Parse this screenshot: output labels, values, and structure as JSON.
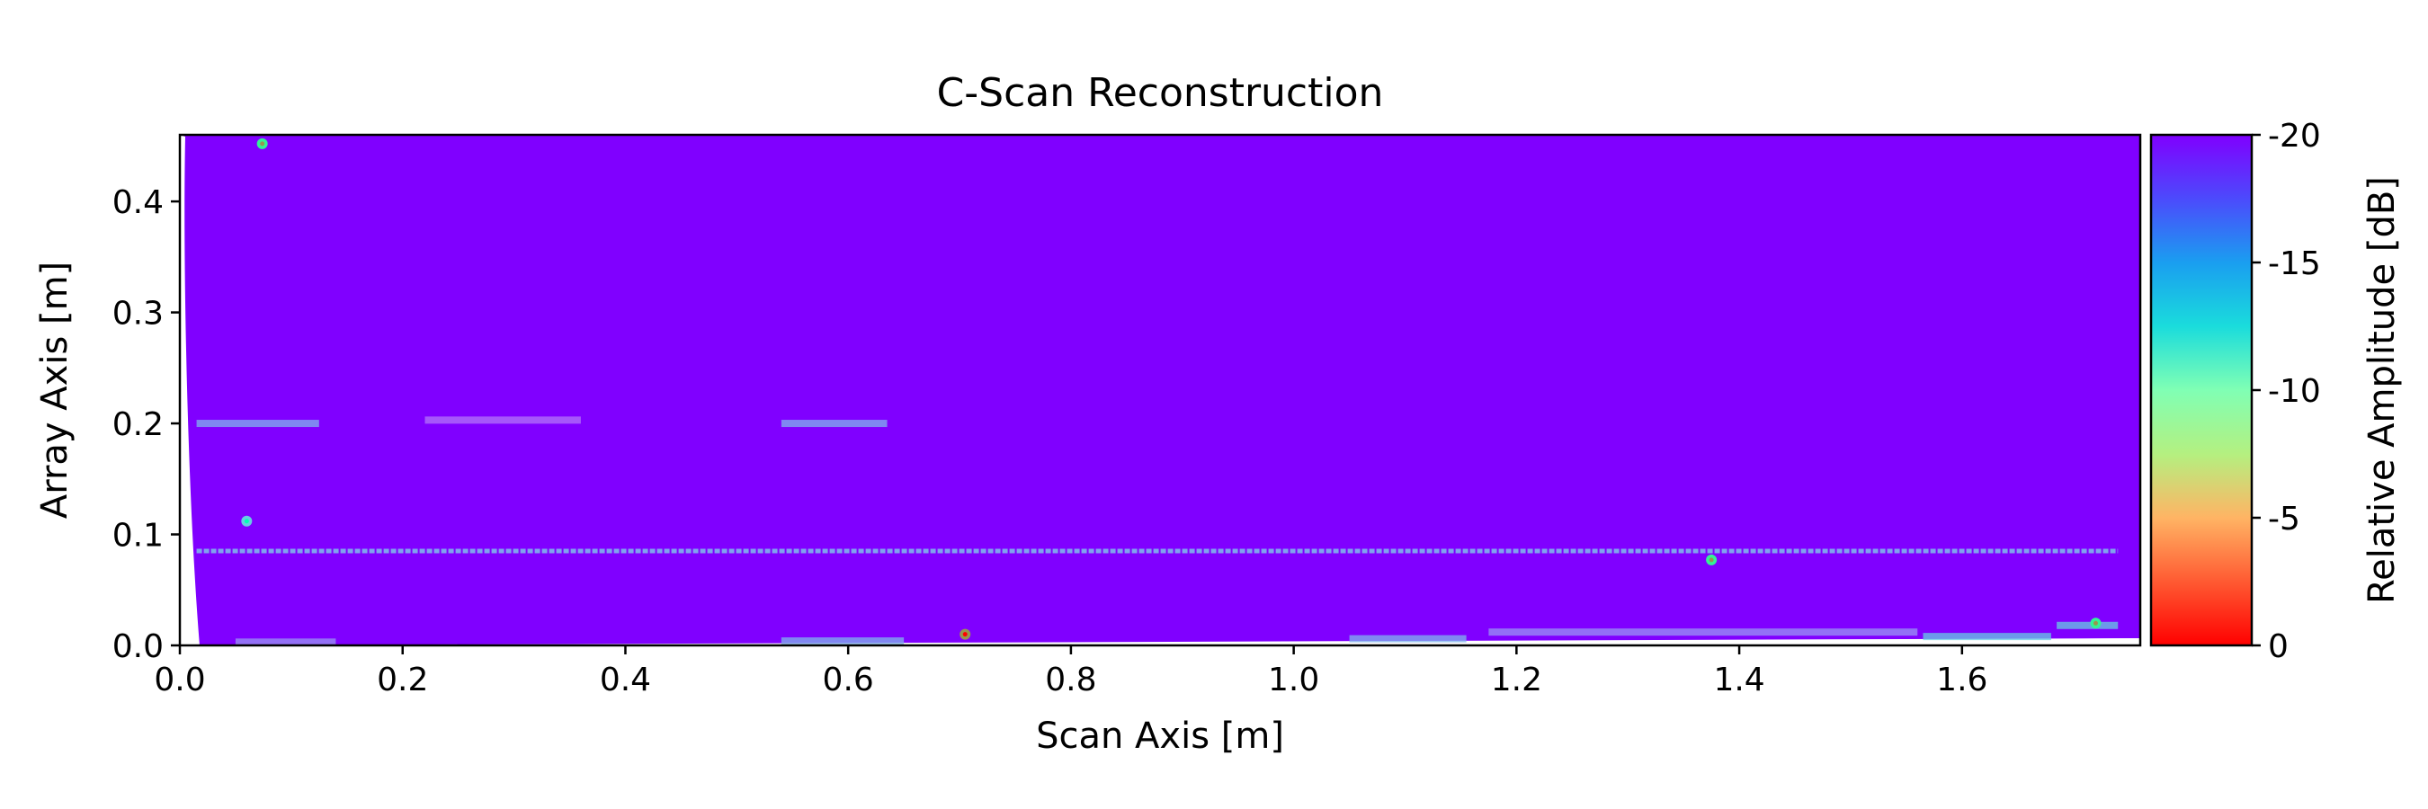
{
  "chart_data": {
    "type": "heatmap",
    "title": "C-Scan Reconstruction",
    "xlabel": "Scan Axis [m]",
    "ylabel": "Array Axis [m]",
    "xlim": [
      0.0,
      1.76
    ],
    "ylim": [
      0.0,
      0.46
    ],
    "xticks": [
      0.0,
      0.2,
      0.4,
      0.6,
      0.8,
      1.0,
      1.2,
      1.4,
      1.6
    ],
    "xtick_labels": [
      "0.0",
      "0.2",
      "0.4",
      "0.6",
      "0.8",
      "1.0",
      "1.2",
      "1.4",
      "1.6"
    ],
    "yticks": [
      0.0,
      0.1,
      0.2,
      0.3,
      0.4
    ],
    "ytick_labels": [
      "0.0",
      "0.1",
      "0.2",
      "0.3",
      "0.4"
    ],
    "colorbar": {
      "label": "Relative Amplitude [dB]",
      "range": [
        -20,
        0
      ],
      "ticks": [
        0,
        -5,
        -10,
        -15,
        -20
      ],
      "tick_labels": [
        "0",
        "-5",
        "-10",
        "-15",
        "-20"
      ],
      "colormap": "rainbow",
      "orientation": "top is -20, bottom is 0"
    },
    "background_level_db": -20,
    "background_color": "#8000ff",
    "grid": false,
    "features": [
      {
        "kind": "line",
        "x": [
          0.015,
          1.74
        ],
        "y": 0.085,
        "db": -15
      },
      {
        "kind": "band",
        "x": [
          0.015,
          0.125
        ],
        "y": 0.2,
        "db": -15
      },
      {
        "kind": "band",
        "x": [
          0.54,
          0.635
        ],
        "y": 0.2,
        "db": -15
      },
      {
        "kind": "band",
        "x": [
          0.22,
          0.36
        ],
        "y": 0.203,
        "db": -17
      },
      {
        "kind": "band",
        "x": [
          0.54,
          0.65
        ],
        "y": 0.004,
        "db": -15
      },
      {
        "kind": "band",
        "x": [
          1.05,
          1.155
        ],
        "y": 0.006,
        "db": -15
      },
      {
        "kind": "band",
        "x": [
          1.175,
          1.56
        ],
        "y": 0.012,
        "db": -16
      },
      {
        "kind": "band",
        "x": [
          1.565,
          1.68
        ],
        "y": 0.008,
        "db": -14
      },
      {
        "kind": "band",
        "x": [
          1.685,
          1.74
        ],
        "y": 0.018,
        "db": -14
      },
      {
        "kind": "band",
        "x": [
          0.05,
          0.14
        ],
        "y": 0.003,
        "db": -16
      },
      {
        "kind": "spot",
        "x": 0.074,
        "y": 0.452,
        "db": -8
      },
      {
        "kind": "spot",
        "x": 0.06,
        "y": 0.112,
        "db": -14
      },
      {
        "kind": "spot",
        "x": 0.705,
        "y": 0.01,
        "db": -4
      },
      {
        "kind": "spot",
        "x": 1.375,
        "y": 0.077,
        "db": -8
      },
      {
        "kind": "spot",
        "x": 1.72,
        "y": 0.02,
        "db": -8
      }
    ]
  }
}
